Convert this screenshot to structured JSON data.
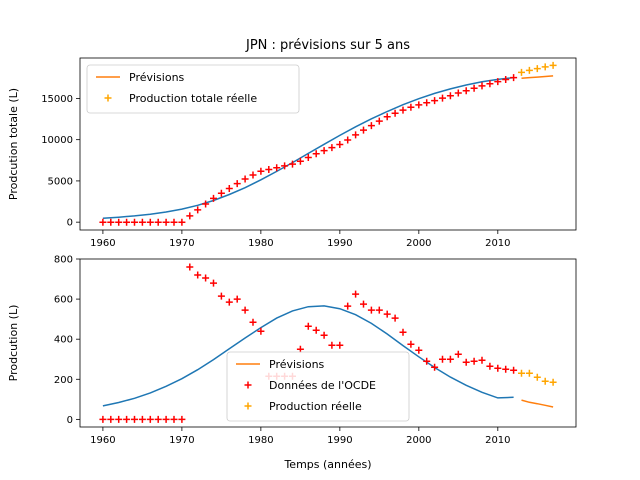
{
  "chart_data": [
    {
      "type": "line",
      "title": "JPN : prévisions sur 5 ans",
      "xlabel": "",
      "ylabel": "Prodcution totale (L)",
      "xlim": [
        1957.1,
        2019.9
      ],
      "ylim": [
        -950,
        19900
      ],
      "xticks": [
        1960,
        1970,
        1980,
        1990,
        2000,
        2010
      ],
      "yticks": [
        0,
        5000,
        10000,
        15000
      ],
      "legend_position": "upper left",
      "legend": [
        {
          "label": "Prévisions",
          "kind": "line",
          "color": "#ff7f0e"
        },
        {
          "label": "Production totale réelle",
          "kind": "plus",
          "color": "#ffa500"
        }
      ],
      "series": [
        {
          "kind": "line",
          "color": "#1f77b4",
          "x": [
            1960,
            1962,
            1964,
            1966,
            1968,
            1970,
            1972,
            1974,
            1976,
            1978,
            1980,
            1982,
            1984,
            1986,
            1988,
            1990,
            1992,
            1994,
            1996,
            1998,
            2000,
            2002,
            2004,
            2006,
            2008,
            2010,
            2012
          ],
          "y": [
            480,
            600,
            760,
            960,
            1230,
            1580,
            2050,
            2630,
            3350,
            4180,
            5130,
            6150,
            7220,
            8330,
            9440,
            10520,
            11560,
            12530,
            13420,
            14240,
            14970,
            15610,
            16160,
            16630,
            17010,
            17310,
            17520
          ]
        },
        {
          "kind": "line",
          "color": "#ff7f0e",
          "x": [
            2013,
            2014,
            2015,
            2016,
            2017
          ],
          "y": [
            17440,
            17520,
            17590,
            17660,
            17730
          ]
        },
        {
          "kind": "plus",
          "color": "#ff0000",
          "x": [
            1960,
            1961,
            1962,
            1963,
            1964,
            1965,
            1966,
            1967,
            1968,
            1969,
            1970,
            1971,
            1972,
            1973,
            1974,
            1975,
            1976,
            1977,
            1978,
            1979,
            1980,
            1981,
            1982,
            1983,
            1984,
            1985,
            1986,
            1987,
            1988,
            1989,
            1990,
            1991,
            1992,
            1993,
            1994,
            1995,
            1996,
            1997,
            1998,
            1999,
            2000,
            2001,
            2002,
            2003,
            2004,
            2005,
            2006,
            2007,
            2008,
            2009,
            2010,
            2011,
            2012
          ],
          "y": [
            0,
            0,
            0,
            0,
            0,
            0,
            0,
            0,
            0,
            0,
            0,
            760,
            1490,
            2200,
            2880,
            3500,
            4080,
            4680,
            5230,
            5720,
            6160,
            6380,
            6600,
            6820,
            7040,
            7390,
            7840,
            8300,
            8670,
            9040,
            9410,
            9960,
            10580,
            11160,
            11710,
            12250,
            12770,
            13210,
            13590,
            13920,
            14220,
            14480,
            14740,
            15040,
            15330,
            15660,
            15940,
            16230,
            16520,
            16790,
            17040,
            17290,
            17530
          ]
        },
        {
          "kind": "plus",
          "color": "#ffa500",
          "x": [
            2013,
            2014,
            2015,
            2016,
            2017
          ],
          "y": [
            18160,
            18400,
            18610,
            18820,
            19000
          ]
        }
      ]
    },
    {
      "type": "line",
      "title": "",
      "xlabel": "Temps (années)",
      "ylabel": "Prodcution (L)",
      "xlim": [
        1957.1,
        2019.9
      ],
      "ylim": [
        -38,
        800
      ],
      "xticks": [
        1960,
        1970,
        1980,
        1990,
        2000,
        2010
      ],
      "yticks": [
        0,
        200,
        400,
        600,
        800
      ],
      "legend_position": "lower center",
      "legend": [
        {
          "label": "Prévisions",
          "kind": "line",
          "color": "#ff7f0e"
        },
        {
          "label": "Données de l'OCDE",
          "kind": "plus",
          "color": "#ff0000"
        },
        {
          "label": "Production réelle",
          "kind": "plus",
          "color": "#ffa500"
        }
      ],
      "series": [
        {
          "kind": "line",
          "color": "#1f77b4",
          "x": [
            1960,
            1962,
            1964,
            1966,
            1968,
            1970,
            1972,
            1974,
            1976,
            1978,
            1980,
            1982,
            1984,
            1986,
            1988,
            1990,
            1992,
            1994,
            1996,
            1998,
            2000,
            2002,
            2004,
            2006,
            2008,
            2010,
            2012
          ],
          "y": [
            67,
            84,
            105,
            132,
            165,
            203,
            248,
            298,
            352,
            406,
            458,
            505,
            541,
            562,
            566,
            552,
            522,
            479,
            426,
            368,
            312,
            259,
            211,
            170,
            135,
            107,
            110
          ]
        },
        {
          "kind": "line",
          "color": "#ff7f0e",
          "x": [
            2013,
            2014,
            2015,
            2016,
            2017
          ],
          "y": [
            96,
            85,
            78,
            70,
            62
          ]
        },
        {
          "kind": "plus",
          "color": "#ff0000",
          "x": [
            1960,
            1961,
            1962,
            1963,
            1964,
            1965,
            1966,
            1967,
            1968,
            1969,
            1970,
            1971,
            1972,
            1973,
            1974,
            1975,
            1976,
            1977,
            1978,
            1979,
            1980,
            1981,
            1982,
            1983,
            1984,
            1985,
            1986,
            1987,
            1988,
            1989,
            1990,
            1991,
            1992,
            1993,
            1994,
            1995,
            1996,
            1997,
            1998,
            1999,
            2000,
            2001,
            2002,
            2003,
            2004,
            2005,
            2006,
            2007,
            2008,
            2009,
            2010,
            2011,
            2012
          ],
          "y": [
            0,
            0,
            0,
            0,
            0,
            0,
            0,
            0,
            0,
            0,
            0,
            760,
            720,
            705,
            680,
            615,
            585,
            600,
            545,
            485,
            440,
            215,
            215,
            215,
            215,
            350,
            465,
            445,
            420,
            370,
            370,
            565,
            625,
            575,
            545,
            545,
            525,
            505,
            435,
            375,
            345,
            290,
            260,
            300,
            300,
            325,
            285,
            290,
            295,
            265,
            255,
            250,
            245
          ]
        },
        {
          "kind": "plus",
          "color": "#ffa500",
          "x": [
            2013,
            2014,
            2015,
            2016,
            2017
          ],
          "y": [
            230,
            230,
            210,
            190,
            185
          ]
        }
      ]
    }
  ]
}
